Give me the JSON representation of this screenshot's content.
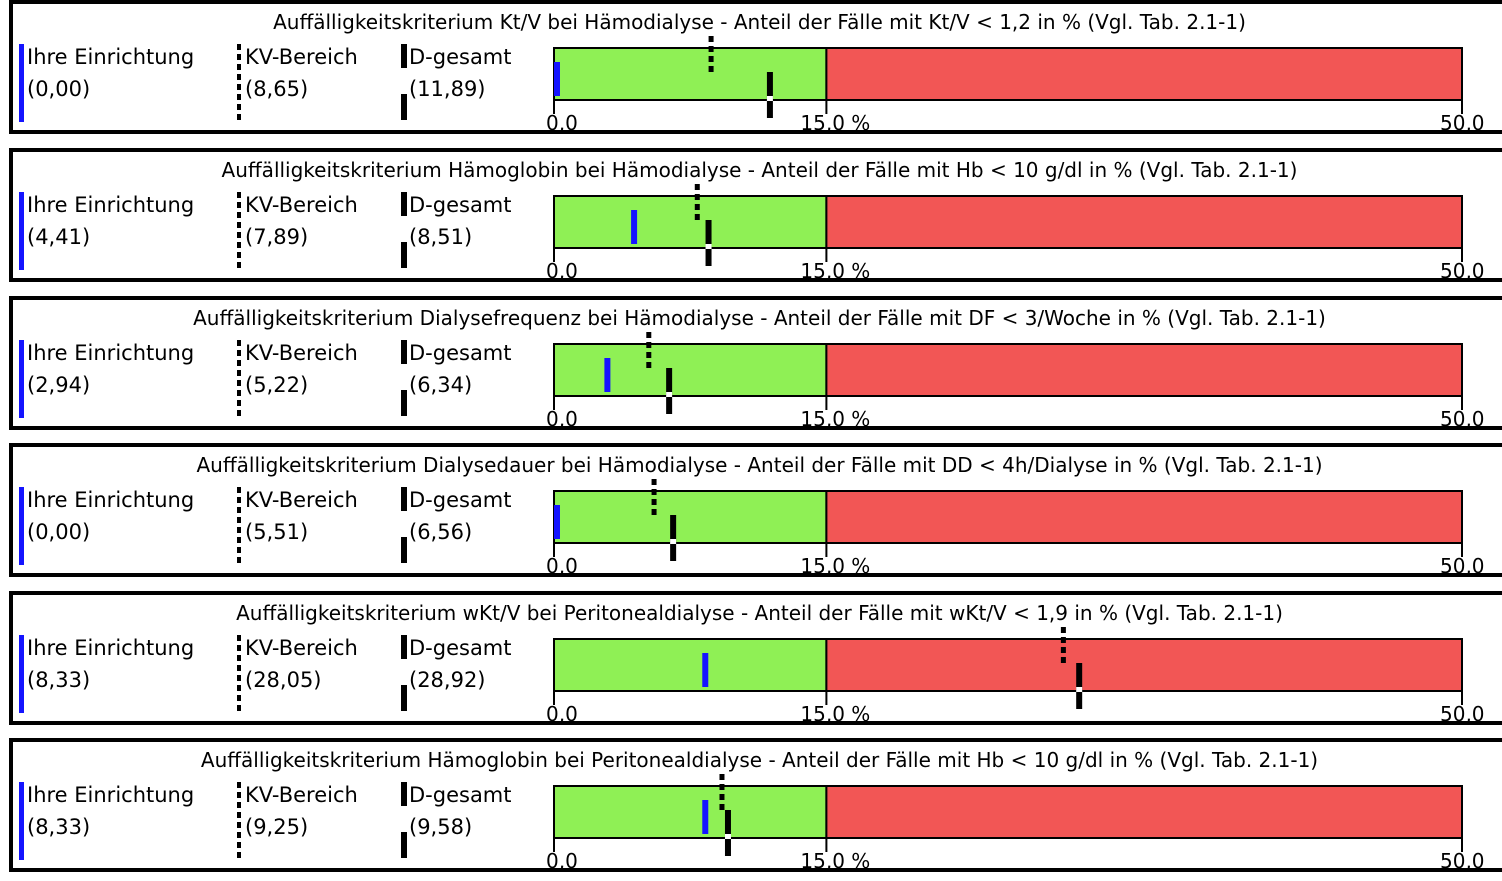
{
  "legend": {
    "own_label": "Ihre Einrichtung",
    "kv_label": "KV-Bereich",
    "d_label": "D-gesamt"
  },
  "colors": {
    "own": "#1414ff",
    "kv": "#000000",
    "d": "#000000",
    "acceptable": "#8ff055",
    "outlier": "#f25655"
  },
  "icons": {
    "own_marker": "solid-blue-line-icon",
    "kv_marker": "dashed-black-line-icon",
    "d_marker": "solid-black-line-icon"
  },
  "chart_data": [
    {
      "type": "bar",
      "title": "Auffälligkeitskriterium Kt/V bei Hämodialyse - Anteil der Fälle mit Kt/V < 1,2 in % (Vgl. Tab. 2.1-1)",
      "xlim": [
        0,
        50
      ],
      "threshold": 15,
      "tick_labels": [
        "0,0",
        "15,0 %",
        "50,0"
      ],
      "own_text": "(0,00)",
      "kv_text": "(8,65)",
      "d_text": "(11,89)",
      "own": 0.0,
      "kv": 8.65,
      "d": 11.89
    },
    {
      "type": "bar",
      "title": "Auffälligkeitskriterium Hämoglobin bei Hämodialyse - Anteil der Fälle mit Hb < 10 g/dl in % (Vgl. Tab. 2.1-1)",
      "xlim": [
        0,
        50
      ],
      "threshold": 15,
      "tick_labels": [
        "0,0",
        "15,0 %",
        "50,0"
      ],
      "own_text": "(4,41)",
      "kv_text": "(7,89)",
      "d_text": "(8,51)",
      "own": 4.41,
      "kv": 7.89,
      "d": 8.51
    },
    {
      "type": "bar",
      "title": "Auffälligkeitskriterium Dialysefrequenz bei Hämodialyse - Anteil der Fälle mit DF < 3/Woche in % (Vgl. Tab. 2.1-1)",
      "xlim": [
        0,
        50
      ],
      "threshold": 15,
      "tick_labels": [
        "0,0",
        "15,0 %",
        "50,0"
      ],
      "own_text": "(2,94)",
      "kv_text": "(5,22)",
      "d_text": "(6,34)",
      "own": 2.94,
      "kv": 5.22,
      "d": 6.34
    },
    {
      "type": "bar",
      "title": "Auffälligkeitskriterium Dialysedauer bei Hämodialyse - Anteil der Fälle mit DD < 4h/Dialyse in % (Vgl. Tab. 2.1-1)",
      "xlim": [
        0,
        50
      ],
      "threshold": 15,
      "tick_labels": [
        "0,0",
        "15,0 %",
        "50,0"
      ],
      "own_text": "(0,00)",
      "kv_text": "(5,51)",
      "d_text": "(6,56)",
      "own": 0.0,
      "kv": 5.51,
      "d": 6.56
    },
    {
      "type": "bar",
      "title": "Auffälligkeitskriterium wKt/V bei Peritonealdialyse - Anteil der Fälle mit wKt/V < 1,9 in % (Vgl. Tab. 2.1-1)",
      "xlim": [
        0,
        50
      ],
      "threshold": 15,
      "tick_labels": [
        "0,0",
        "15,0 %",
        "50,0"
      ],
      "own_text": "(8,33)",
      "kv_text": "(28,05)",
      "d_text": "(28,92)",
      "own": 8.33,
      "kv": 28.05,
      "d": 28.92
    },
    {
      "type": "bar",
      "title": "Auffälligkeitskriterium Hämoglobin bei Peritonealdialyse - Anteil der Fälle mit Hb < 10 g/dl in % (Vgl. Tab. 2.1-1)",
      "xlim": [
        0,
        50
      ],
      "threshold": 15,
      "tick_labels": [
        "0,0",
        "15,0 %",
        "50,0"
      ],
      "own_text": "(8,33)",
      "kv_text": "(9,25)",
      "d_text": "(9,58)",
      "own": 8.33,
      "kv": 9.25,
      "d": 9.58
    }
  ]
}
